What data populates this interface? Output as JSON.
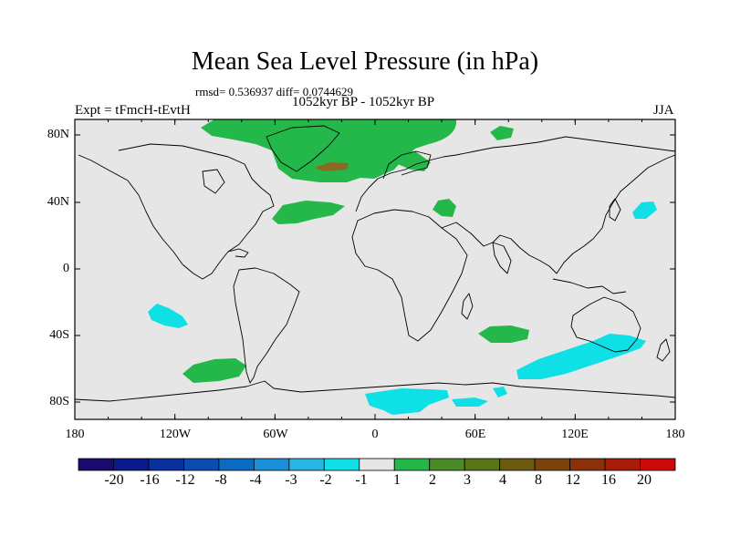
{
  "header": {
    "title": "Mean Sea Level Pressure (in hPa)",
    "stats": "rmsd= 0.536937 diff= 0.0744629",
    "period": "1052kyr BP - 1052kyr BP",
    "experiment": "Expt = tFmcH-tEvtH",
    "season": "JJA"
  },
  "map": {
    "land_fill": "#e6e6e6",
    "coast_color": "#000000",
    "lat_labels": [
      "80N",
      "40N",
      "0",
      "40S",
      "80S"
    ],
    "lon_labels": [
      "180",
      "120W",
      "60W",
      "0",
      "60E",
      "120E",
      "180"
    ]
  },
  "colorbar": {
    "colors": [
      "#1a0a6e",
      "#0c1b8c",
      "#08319e",
      "#0a4cb0",
      "#0d6ac2",
      "#1a8ed6",
      "#28b4e6",
      "#0fe0e6",
      "#e6e6e6",
      "#24b84a",
      "#4a8a28",
      "#5a7418",
      "#6a5a10",
      "#7a440c",
      "#8c300c",
      "#a81c0a",
      "#cc0a0a"
    ],
    "labels": [
      "-20",
      "-16",
      "-12",
      "-8",
      "-4",
      "-3",
      "-2",
      "-1",
      "1",
      "2",
      "3",
      "4",
      "8",
      "12",
      "16",
      "20"
    ]
  },
  "anomaly_colors": {
    "positive": "#24b84a",
    "positive_strong": "#8a6a20",
    "negative": "#0fe0e6"
  }
}
